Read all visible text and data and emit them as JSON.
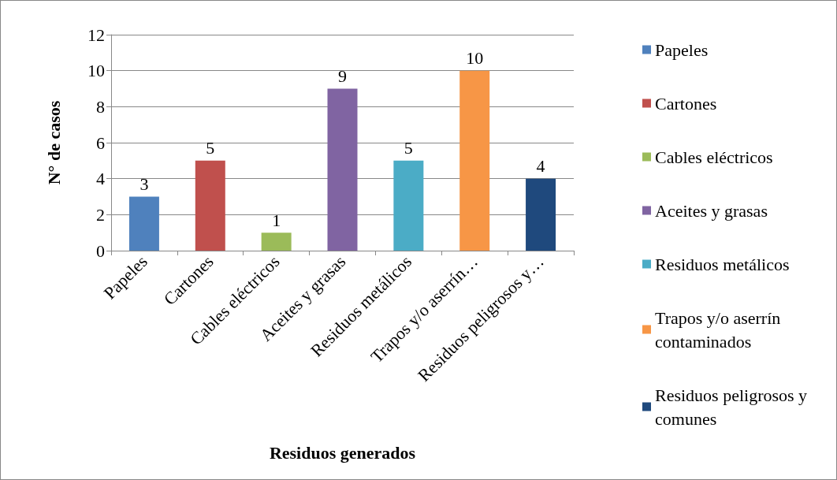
{
  "chart_data": {
    "type": "bar",
    "xlabel": "Residuos generados",
    "ylabel": "N° de casos",
    "categories": [
      "Papeles",
      "Cartones",
      "Cables eléctricos",
      "Aceites y grasas",
      "Residuos metálicos",
      "Trapos y/o aserrín…",
      "Residuos peligrosos y…"
    ],
    "series": [
      {
        "name": "Papeles",
        "color": "#4f81bd",
        "values": [
          3,
          null,
          null,
          null,
          null,
          null,
          null
        ]
      },
      {
        "name": "Cartones",
        "color": "#c0504d",
        "values": [
          null,
          5,
          null,
          null,
          null,
          null,
          null
        ]
      },
      {
        "name": "Cables eléctricos",
        "color": "#9bbb59",
        "values": [
          null,
          null,
          1,
          null,
          null,
          null,
          null
        ]
      },
      {
        "name": "Aceites y grasas",
        "color": "#8064a2",
        "values": [
          null,
          null,
          null,
          9,
          null,
          null,
          null
        ]
      },
      {
        "name": "Residuos metálicos",
        "color": "#4bacc6",
        "values": [
          null,
          null,
          null,
          null,
          5,
          null,
          null
        ]
      },
      {
        "name": "Trapos y/o aserrín contaminados",
        "color": "#f79646",
        "values": [
          null,
          null,
          null,
          null,
          null,
          10,
          null
        ]
      },
      {
        "name": "Residuos peligrosos y comunes",
        "color": "#1f497d",
        "values": [
          null,
          null,
          null,
          null,
          null,
          null,
          4
        ]
      }
    ],
    "stacked": true,
    "data_labels": true,
    "ylim": [
      0,
      12
    ],
    "yticks": [
      0,
      2,
      4,
      6,
      8,
      10,
      12
    ],
    "grid": "y",
    "legend": "right"
  }
}
